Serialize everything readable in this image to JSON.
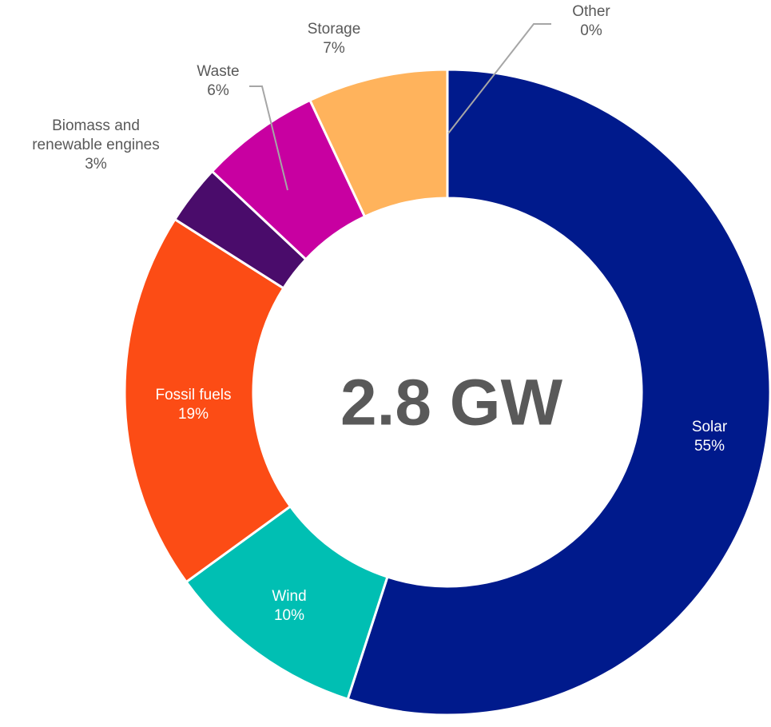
{
  "chart_data": {
    "type": "donut",
    "center_label": "2.8 GW",
    "categories": [
      "Solar",
      "Wind",
      "Fossil fuels",
      "Biomass and renewable engines",
      "Waste",
      "Storage",
      "Other"
    ],
    "values": [
      55,
      10,
      19,
      3,
      6,
      7,
      0
    ],
    "value_labels": [
      "55%",
      "10%",
      "19%",
      "3%",
      "6%",
      "7%",
      "0%"
    ],
    "colors": [
      "#001a8c",
      "#00bfb3",
      "#fc4c15",
      "#4a0c6b",
      "#c800a1",
      "#ffb35c",
      "#8c8c8c"
    ]
  }
}
